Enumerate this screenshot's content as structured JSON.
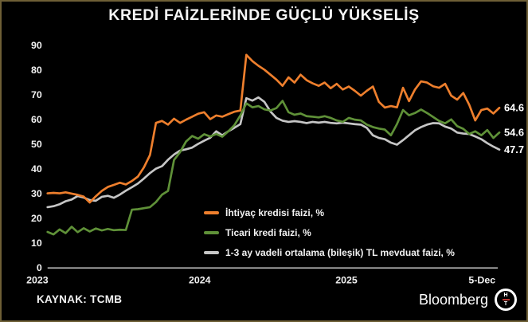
{
  "title": "KREDİ FAİZLERİNDE GÜÇLÜ YÜKSELİŞ",
  "source": "KAYNAK: TCMB",
  "branding": {
    "name": "Bloomberg",
    "monogram_top": "H",
    "monogram_bottom": "T"
  },
  "colors": {
    "background": "#000000",
    "border": "#6e5f36",
    "text": "#f2f2f2",
    "axis": "#b3b3b3",
    "orange": "#ee7f2d",
    "green": "#5f9138",
    "gray": "#c6c6c6"
  },
  "chart_data": {
    "type": "line",
    "title": "KREDİ FAİZLERİNDE GÜÇLÜ YÜKSELİŞ",
    "xlabel": "",
    "ylabel": "",
    "x_axis_labels": [
      "2023",
      "2024",
      "2025",
      "5-Dec"
    ],
    "y_ticks": [
      0,
      10,
      20,
      30,
      40,
      50,
      60,
      70,
      80,
      90
    ],
    "ylim": [
      0,
      90
    ],
    "grid": false,
    "legend_position": "inside-bottom-center",
    "series": [
      {
        "name": "İhtiyaç kredisi faizi, %",
        "color": "#ee7f2d",
        "end_label": "64.6",
        "last_value": 64.6,
        "values": [
          30.0,
          30.2,
          30.0,
          30.4,
          29.9,
          29.4,
          28.7,
          26.3,
          28.8,
          31.0,
          32.6,
          33.4,
          34.3,
          33.6,
          35.0,
          36.8,
          40.5,
          45.5,
          58.5,
          59.3,
          57.8,
          60.2,
          58.5,
          59.8,
          61.0,
          62.2,
          62.8,
          60.0,
          61.5,
          61.0,
          62.0,
          63.0,
          63.5,
          86.0,
          83.5,
          81.6,
          80.0,
          78.0,
          76.0,
          73.5,
          76.9,
          74.8,
          78.0,
          75.8,
          74.5,
          73.5,
          74.8,
          72.5,
          74.3,
          72.0,
          73.2,
          71.5,
          69.5,
          71.5,
          73.2,
          67.0,
          64.7,
          65.3,
          64.8,
          72.7,
          67.3,
          72.0,
          75.3,
          74.8,
          73.3,
          72.7,
          74.3,
          69.5,
          67.9,
          70.6,
          65.8,
          59.5,
          63.7,
          64.3,
          62.3,
          64.6
        ]
      },
      {
        "name": "Ticari kredi faizi, %",
        "color": "#5f9138",
        "end_label": "54.6",
        "last_value": 54.6,
        "values": [
          14.4,
          13.4,
          15.4,
          13.9,
          16.5,
          14.3,
          15.9,
          14.6,
          15.8,
          15.0,
          15.6,
          15.1,
          15.3,
          15.2,
          23.4,
          23.6,
          24.0,
          24.4,
          26.5,
          29.5,
          31.0,
          43.5,
          46.7,
          51.0,
          53.2,
          52.1,
          53.9,
          53.0,
          54.0,
          52.9,
          55.1,
          57.5,
          61.5,
          66.4,
          64.8,
          65.3,
          64.0,
          63.5,
          64.5,
          67.4,
          62.8,
          61.8,
          62.3,
          61.2,
          61.0,
          60.7,
          61.2,
          60.5,
          59.5,
          58.9,
          60.5,
          59.8,
          59.5,
          57.8,
          56.8,
          56.2,
          55.8,
          53.5,
          58.0,
          63.7,
          61.6,
          62.5,
          63.9,
          62.5,
          60.9,
          59.3,
          58.3,
          59.9,
          57.2,
          56.1,
          54.0,
          55.1,
          53.5,
          55.6,
          52.4,
          54.6
        ]
      },
      {
        "name": "1-3 ay vadeli ortalama (bileşik) TL mevduat faizi, %",
        "color": "#c6c6c6",
        "end_label": "47.7",
        "last_value": 47.7,
        "values": [
          24.4,
          24.8,
          25.6,
          26.8,
          27.5,
          28.9,
          28.3,
          27.3,
          27.0,
          28.6,
          29.0,
          28.2,
          29.5,
          31.1,
          32.5,
          34.0,
          36.0,
          38.2,
          40.0,
          41.0,
          43.6,
          45.7,
          47.3,
          47.8,
          48.5,
          50.0,
          51.3,
          52.5,
          55.1,
          53.5,
          55.1,
          56.5,
          58.0,
          68.5,
          67.5,
          68.8,
          67.0,
          63.1,
          60.5,
          59.4,
          58.9,
          59.2,
          58.9,
          58.4,
          58.9,
          58.6,
          58.9,
          58.5,
          58.3,
          58.6,
          58.3,
          58.0,
          57.8,
          56.5,
          53.5,
          52.4,
          51.9,
          50.5,
          49.7,
          51.5,
          53.5,
          55.5,
          56.8,
          57.8,
          58.4,
          58.3,
          57.0,
          56.2,
          54.6,
          54.2,
          54.0,
          53.0,
          51.9,
          50.3,
          48.9,
          47.7
        ]
      }
    ]
  }
}
